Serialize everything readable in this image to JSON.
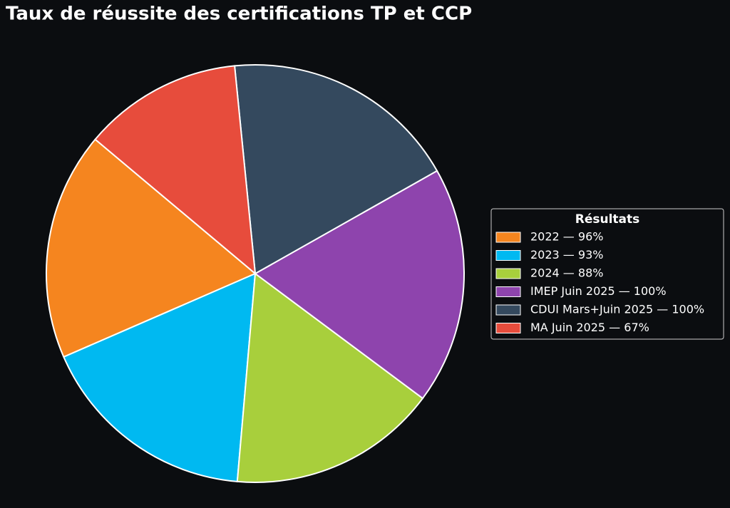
{
  "chart_data": {
    "type": "pie",
    "title": "Taux de réussite des certifications TP et CCP",
    "legend_title": "Résultats",
    "categories": [
      "2022 — 96%",
      "2023 — 93%",
      "2024 — 88%",
      "IMEP Juin 2025 — 100%",
      "CDUI Mars+Juin 2025 — 100%",
      "MA Juin 2025 — 67%"
    ],
    "values": [
      96,
      93,
      88,
      100,
      100,
      67
    ],
    "colors": [
      "#f5851f",
      "#00b9f1",
      "#a8cf3c",
      "#8e44ad",
      "#34495e",
      "#e74c3c"
    ],
    "legend": "right"
  }
}
